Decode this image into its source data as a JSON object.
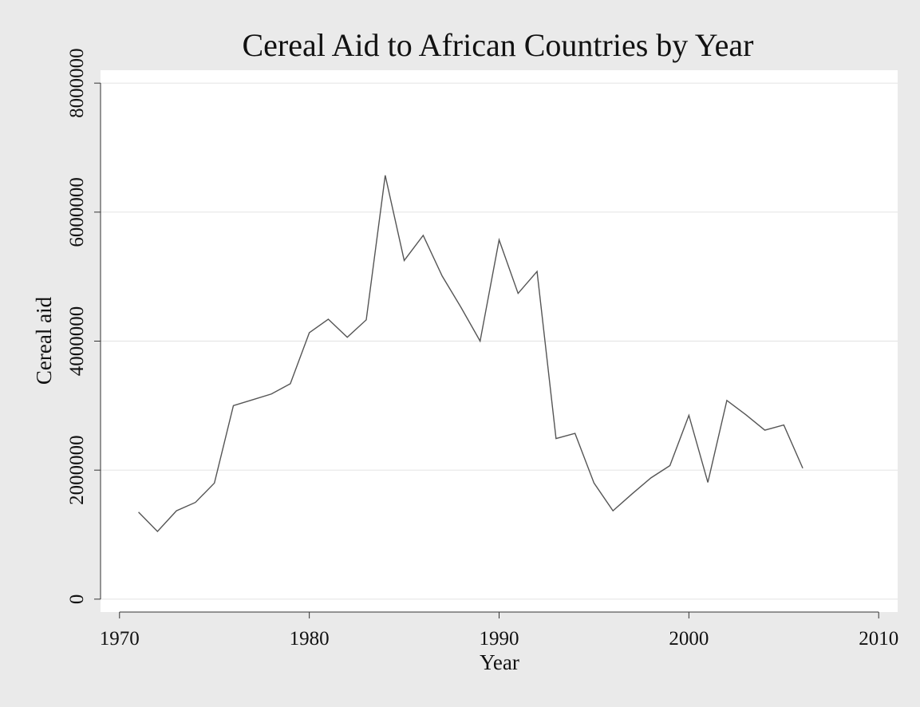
{
  "chart_data": {
    "type": "line",
    "title": "Cereal Aid to African Countries by Year",
    "xlabel": "Year",
    "ylabel": "Cereal aid",
    "xlim": [
      1969,
      2011
    ],
    "ylim": [
      -200000,
      8200000
    ],
    "xticks": [
      1970,
      1980,
      1990,
      2000,
      2010
    ],
    "yticks": [
      0,
      2000000,
      4000000,
      6000000,
      8000000
    ],
    "ytick_labels": [
      "0",
      "2000000",
      "4000000",
      "6000000",
      "8000000"
    ],
    "grid": true,
    "legend": "none",
    "colors": {
      "line": "#555555",
      "grid": "#e6e6e6",
      "plot_bg": "#ffffff",
      "outer_bg": "#eaeaea"
    },
    "series": [
      {
        "x": [
          1971,
          1972,
          1973,
          1974,
          1975,
          1976,
          1977,
          1978,
          1979,
          1980,
          1981,
          1982,
          1983,
          1984,
          1985,
          1986,
          1987,
          1988,
          1989,
          1990,
          1991,
          1992,
          1993,
          1994,
          1995,
          1996,
          1997,
          1998,
          1999,
          2000,
          2001,
          2002,
          2003,
          2004,
          2005,
          2006
        ],
        "values": [
          1350000,
          1050000,
          1370000,
          1500000,
          1800000,
          3000000,
          3090000,
          3180000,
          3340000,
          4130000,
          4340000,
          4060000,
          4330000,
          6570000,
          5250000,
          5640000,
          5010000,
          4520000,
          4000000,
          5570000,
          4740000,
          5080000,
          2490000,
          2570000,
          1800000,
          1370000,
          1630000,
          1880000,
          2070000,
          2850000,
          1810000,
          3080000,
          2860000,
          2620000,
          2700000,
          2030000
        ]
      }
    ]
  }
}
